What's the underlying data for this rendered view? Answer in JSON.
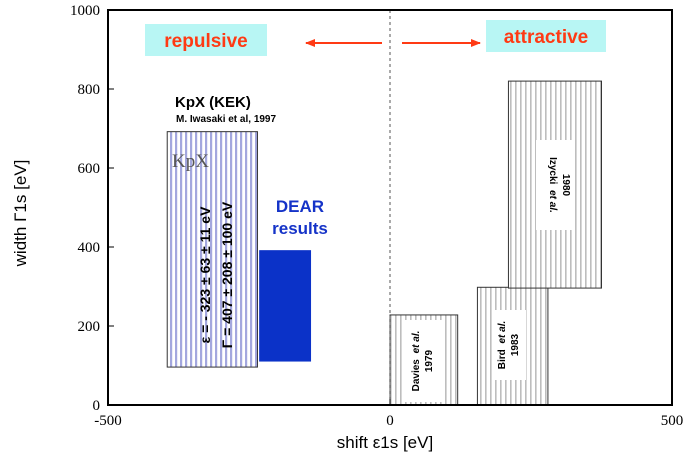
{
  "chart_data": {
    "type": "scatter",
    "xlabel": "shift ε1s [eV]",
    "ylabel": "width Γ1s [eV]",
    "xlim": [
      -500,
      500
    ],
    "ylim": [
      0,
      1000
    ],
    "xticks": [
      -500,
      0,
      500
    ],
    "yticks": [
      0,
      200,
      400,
      600,
      800,
      1000
    ],
    "grid": false,
    "reference_line_x": 0,
    "direction_labels": {
      "left": "repulsive",
      "right": "attractive"
    },
    "boxes": [
      {
        "name": "KpX (KEK)",
        "reference": "M. Iwasaki et al, 1997",
        "inner_label": "KpX",
        "epsilon_text": "ε = - 323 ± 63 ± 11 eV",
        "gamma_text": "Γ = 407 ± 208 ± 100 eV",
        "x_range": [
          -395,
          -235
        ],
        "y_range": [
          96,
          692
        ],
        "fill": "#9aa0d8",
        "style": "striped"
      },
      {
        "name": "DEAR results",
        "x_range": [
          -232,
          -140
        ],
        "y_range": [
          110,
          392
        ],
        "fill": "#0b32c8",
        "style": "solid"
      },
      {
        "name": "Davies et al. 1979",
        "x_range": [
          0,
          120
        ],
        "y_range": [
          0,
          228
        ],
        "fill": "#999999",
        "style": "striped"
      },
      {
        "name": "Bird et al. 1983",
        "x_range": [
          155,
          280
        ],
        "y_range": [
          0,
          298
        ],
        "fill": "#999999",
        "style": "striped"
      },
      {
        "name": "Izycki et al. 1980",
        "x_range": [
          210,
          375
        ],
        "y_range": [
          296,
          820
        ],
        "fill": "#999999",
        "style": "striped"
      }
    ]
  },
  "labels": {
    "repulsive": "repulsive",
    "attractive": "attractive",
    "kpx_title": "KpX (KEK)",
    "kpx_ref": "M. Iwasaki et al, 1997",
    "kpx_inner": "KpX",
    "kpx_eps": "ε = - 323 ± 63 ± 11 eV",
    "kpx_gamma": "Γ = 407 ± 208 ± 100 eV",
    "dear_line1": "DEAR",
    "dear_line2": "results",
    "davies_name": "Davies",
    "davies_etal": "et al.",
    "davies_year": "1979",
    "bird_name": "Bird",
    "bird_etal": "et al.",
    "bird_year": "1983",
    "izycki_name": "Izycki",
    "izycki_etal": "et al.",
    "izycki_year": "1980"
  },
  "colors": {
    "arrow": "#ff3a14",
    "tag_background": "#b8f6f4",
    "dear_text": "#1533c8"
  }
}
